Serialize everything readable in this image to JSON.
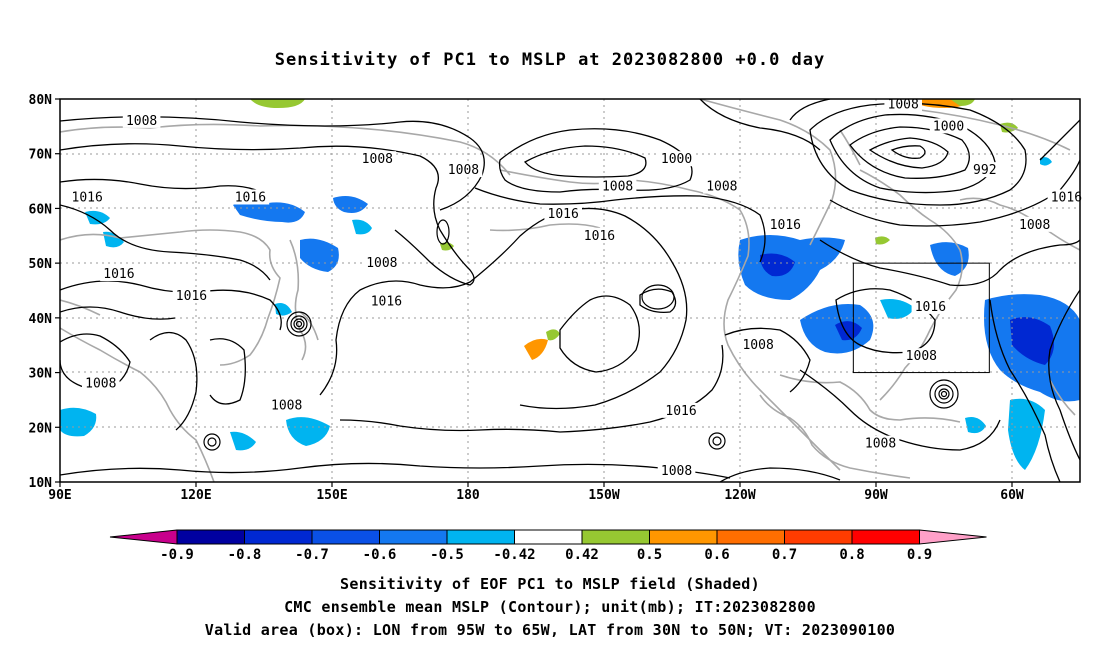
{
  "title": "Sensitivity of PC1 to MSLP at 2023082800 +0.0 day",
  "lat_labels": [
    "10N",
    "20N",
    "30N",
    "40N",
    "50N",
    "60N",
    "70N",
    "80N"
  ],
  "lon_labels": [
    "90E",
    "120E",
    "150E",
    "180",
    "150W",
    "120W",
    "90W",
    "60W"
  ],
  "map_extent": {
    "lon": [
      90,
      315
    ],
    "lat": [
      10,
      80
    ]
  },
  "valid_box": {
    "lon": [
      265,
      295
    ],
    "lat": [
      30,
      50
    ]
  },
  "isobars": [
    {
      "label": "1008",
      "lon": 108,
      "lat": 76
    },
    {
      "label": "1016",
      "lon": 96,
      "lat": 62
    },
    {
      "label": "1016",
      "lon": 132,
      "lat": 62
    },
    {
      "label": "1008",
      "lon": 160,
      "lat": 69
    },
    {
      "label": "1008",
      "lon": 179,
      "lat": 67
    },
    {
      "label": "1016",
      "lon": 103,
      "lat": 48
    },
    {
      "label": "1016",
      "lon": 119,
      "lat": 44
    },
    {
      "label": "1008",
      "lon": 161,
      "lat": 50
    },
    {
      "label": "1016",
      "lon": 162,
      "lat": 43
    },
    {
      "label": "1008",
      "lon": 99,
      "lat": 28
    },
    {
      "label": "1008",
      "lon": 140,
      "lat": 24
    },
    {
      "label": "1000",
      "lon": 226,
      "lat": 69
    },
    {
      "label": "1008",
      "lon": 213,
      "lat": 64
    },
    {
      "label": "1016",
      "lon": 201,
      "lat": 59
    },
    {
      "label": "1016",
      "lon": 209,
      "lat": 55
    },
    {
      "label": "1008",
      "lon": 236,
      "lat": 64
    },
    {
      "label": "1016",
      "lon": 250,
      "lat": 57
    },
    {
      "label": "1016",
      "lon": 227,
      "lat": 23
    },
    {
      "label": "1008",
      "lon": 226,
      "lat": 12
    },
    {
      "label": "1008",
      "lon": 244,
      "lat": 35
    },
    {
      "label": "1008",
      "lon": 271,
      "lat": 17
    },
    {
      "label": "1008",
      "lon": 280,
      "lat": 33
    },
    {
      "label": "1016",
      "lon": 282,
      "lat": 42
    },
    {
      "label": "1008",
      "lon": 276,
      "lat": 79
    },
    {
      "label": "1000",
      "lon": 286,
      "lat": 75
    },
    {
      "label": "992",
      "lon": 294,
      "lat": 67
    },
    {
      "label": "1008",
      "lon": 305,
      "lat": 57
    },
    {
      "label": "1016",
      "lon": 312,
      "lat": 62
    }
  ],
  "colorbar": {
    "labels": [
      "-0.9",
      "-0.8",
      "-0.7",
      "-0.6",
      "-0.5",
      "-0.42",
      "0.42",
      "0.5",
      "0.6",
      "0.7",
      "0.8",
      "0.9"
    ],
    "colors": [
      "#c8008c",
      "#0000a0",
      "#0028d2",
      "#0a50e6",
      "#1478f0",
      "#00b4f0",
      "#ffffff",
      "#96c832",
      "#ff9600",
      "#ff6e00",
      "#ff3c00",
      "#ff0000",
      "#ffa0c8"
    ]
  },
  "captions": [
    "Sensitivity of EOF PC1 to MSLP field (Shaded)",
    "CMC ensemble mean MSLP (Contour); unit(mb); IT:2023082800",
    "Valid area (box): LON from 95W to 65W, LAT from 30N to 50N; VT: 2023090100"
  ]
}
